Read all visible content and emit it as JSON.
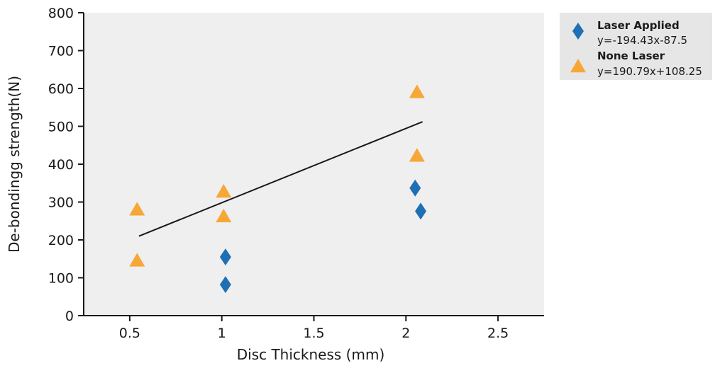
{
  "chart_data": {
    "type": "scatter",
    "xlabel": "Disc Thickness (mm)",
    "ylabel": "De-bondingg  strength(N)",
    "x_ticks": [
      "0.5",
      "1",
      "1.5",
      "2",
      "2.5"
    ],
    "y_ticks": [
      "0",
      "100",
      "200",
      "300",
      "400",
      "500",
      "600",
      "700",
      "800"
    ],
    "ylim": [
      0,
      800
    ],
    "xlim": [
      0.25,
      2.75
    ],
    "grid": false,
    "legend_position": "right",
    "colors": {
      "plot_bg": "#efefef",
      "legend_bg": "#e6e6e6",
      "laser": "#1f6fb4",
      "none_laser": "#f7a736",
      "trend": "#1a1a1a"
    },
    "series": [
      {
        "name": "Laser Applied",
        "equation": "y=-194.43x-87.5",
        "marker": "diamond",
        "points": [
          [
            1.02,
            155
          ],
          [
            1.02,
            82
          ],
          [
            2.05,
            337
          ],
          [
            2.08,
            276
          ]
        ]
      },
      {
        "name": "None Laser",
        "equation": "y=190.79x+108.25",
        "marker": "triangle",
        "points": [
          [
            0.54,
            280
          ],
          [
            0.54,
            145
          ],
          [
            1.01,
            327
          ],
          [
            1.01,
            262
          ],
          [
            2.06,
            590
          ],
          [
            2.06,
            422
          ]
        ]
      }
    ],
    "trendline": {
      "points": [
        [
          0.55,
          210
        ],
        [
          2.09,
          512
        ]
      ]
    }
  }
}
